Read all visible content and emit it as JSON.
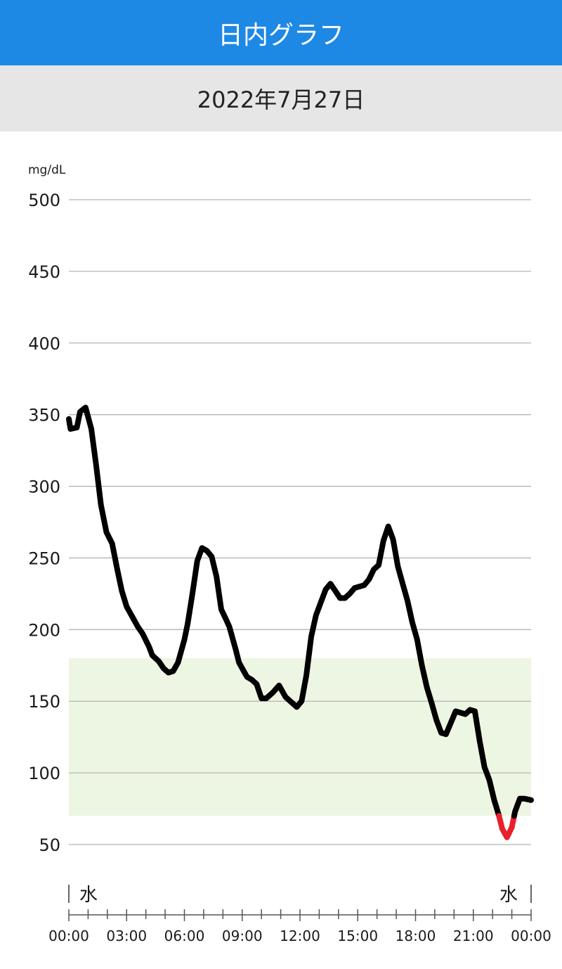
{
  "header": {
    "title": "日内グラフ",
    "bg_color": "#1e88e5"
  },
  "date_bar": {
    "date": "2022年7月27日"
  },
  "chart_data": {
    "type": "line",
    "yunit": "mg/dL",
    "ylim": [
      50,
      500
    ],
    "yticks": [
      500,
      450,
      400,
      350,
      300,
      250,
      200,
      150,
      100,
      50
    ],
    "xlim": [
      "00:00",
      "24:00"
    ],
    "xticks": [
      "00:00",
      "03:00",
      "06:00",
      "09:00",
      "12:00",
      "15:00",
      "18:00",
      "21:00",
      "00:00"
    ],
    "day_labels": {
      "start": "水",
      "end": "水"
    },
    "target_range": [
      70,
      180
    ],
    "target_range_color": "#edf5e3",
    "line_color": "#000000",
    "low_color": "#e8202a",
    "low_threshold": 70,
    "grid": true,
    "points": [
      [
        "00:00",
        347
      ],
      [
        "00:05",
        340
      ],
      [
        "00:25",
        341
      ],
      [
        "00:35",
        352
      ],
      [
        "00:52",
        355
      ],
      [
        "01:10",
        340
      ],
      [
        "01:25",
        315
      ],
      [
        "01:40",
        287
      ],
      [
        "01:57",
        268
      ],
      [
        "02:15",
        260
      ],
      [
        "02:30",
        243
      ],
      [
        "02:45",
        227
      ],
      [
        "03:00",
        216
      ],
      [
        "03:20",
        208
      ],
      [
        "03:35",
        202
      ],
      [
        "03:50",
        197
      ],
      [
        "04:10",
        188
      ],
      [
        "04:20",
        182
      ],
      [
        "04:40",
        178
      ],
      [
        "04:55",
        173
      ],
      [
        "05:10",
        170
      ],
      [
        "05:25",
        171
      ],
      [
        "05:40",
        177
      ],
      [
        "06:00",
        193
      ],
      [
        "06:10",
        204
      ],
      [
        "06:25",
        225
      ],
      [
        "06:40",
        248
      ],
      [
        "06:55",
        257
      ],
      [
        "07:10",
        255
      ],
      [
        "07:25",
        251
      ],
      [
        "07:40",
        237
      ],
      [
        "07:55",
        214
      ],
      [
        "08:10",
        207
      ],
      [
        "08:20",
        202
      ],
      [
        "08:40",
        186
      ],
      [
        "08:50",
        177
      ],
      [
        "09:05",
        171
      ],
      [
        "09:15",
        167
      ],
      [
        "09:30",
        165
      ],
      [
        "09:45",
        162
      ],
      [
        "10:00",
        152
      ],
      [
        "10:15",
        152
      ],
      [
        "10:35",
        156
      ],
      [
        "10:55",
        161
      ],
      [
        "11:15",
        153
      ],
      [
        "11:30",
        150
      ],
      [
        "11:50",
        146
      ],
      [
        "12:05",
        150
      ],
      [
        "12:20",
        168
      ],
      [
        "12:35",
        195
      ],
      [
        "12:50",
        210
      ],
      [
        "13:05",
        219
      ],
      [
        "13:20",
        228
      ],
      [
        "13:35",
        232
      ],
      [
        "13:50",
        227
      ],
      [
        "14:05",
        222
      ],
      [
        "14:20",
        222
      ],
      [
        "14:35",
        225
      ],
      [
        "14:50",
        229
      ],
      [
        "15:05",
        230
      ],
      [
        "15:20",
        231
      ],
      [
        "15:35",
        235
      ],
      [
        "15:50",
        242
      ],
      [
        "16:05",
        245
      ],
      [
        "16:20",
        262
      ],
      [
        "16:35",
        272
      ],
      [
        "16:50",
        263
      ],
      [
        "17:05",
        244
      ],
      [
        "17:20",
        232
      ],
      [
        "17:35",
        220
      ],
      [
        "17:50",
        205
      ],
      [
        "18:05",
        193
      ],
      [
        "18:20",
        175
      ],
      [
        "18:35",
        160
      ],
      [
        "18:50",
        149
      ],
      [
        "19:05",
        137
      ],
      [
        "19:20",
        128
      ],
      [
        "19:35",
        127
      ],
      [
        "19:50",
        135
      ],
      [
        "20:05",
        143
      ],
      [
        "20:20",
        142
      ],
      [
        "20:35",
        141
      ],
      [
        "20:50",
        144
      ],
      [
        "21:05",
        143
      ],
      [
        "21:20",
        122
      ],
      [
        "21:35",
        104
      ],
      [
        "21:50",
        95
      ],
      [
        "22:05",
        81
      ],
      [
        "22:20",
        70
      ],
      [
        "22:30",
        61
      ],
      [
        "22:45",
        55
      ],
      [
        "23:00",
        62
      ],
      [
        "23:10",
        73
      ],
      [
        "23:25",
        82
      ],
      [
        "23:40",
        82
      ],
      [
        "24:00",
        81
      ]
    ]
  }
}
